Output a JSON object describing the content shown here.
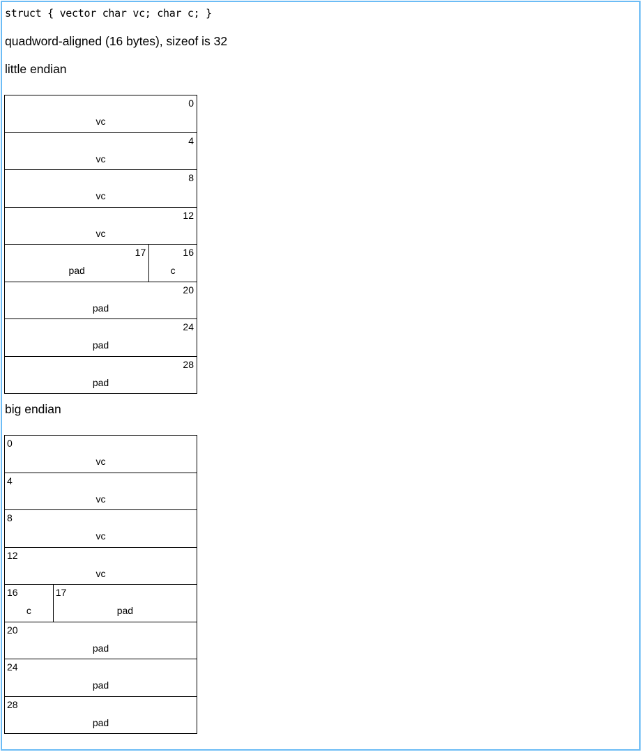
{
  "declaration": "struct { vector char vc; char c; }",
  "alignment": "quadword-aligned (16 bytes), sizeof is 32",
  "colors": {
    "frame_border": "#6cbcf5"
  },
  "little_endian": {
    "heading": "little endian",
    "rows": [
      [
        {
          "offset": "0",
          "label": "vc",
          "bytes": 4
        }
      ],
      [
        {
          "offset": "4",
          "label": "vc",
          "bytes": 4
        }
      ],
      [
        {
          "offset": "8",
          "label": "vc",
          "bytes": 4
        }
      ],
      [
        {
          "offset": "12",
          "label": "vc",
          "bytes": 4
        }
      ],
      [
        {
          "offset": "17",
          "label": "pad",
          "bytes": 3
        },
        {
          "offset": "16",
          "label": "c",
          "bytes": 1
        }
      ],
      [
        {
          "offset": "20",
          "label": "pad",
          "bytes": 4
        }
      ],
      [
        {
          "offset": "24",
          "label": "pad",
          "bytes": 4
        }
      ],
      [
        {
          "offset": "28",
          "label": "pad",
          "bytes": 4
        }
      ]
    ]
  },
  "big_endian": {
    "heading": "big endian",
    "rows": [
      [
        {
          "offset": "0",
          "label": "vc",
          "bytes": 4
        }
      ],
      [
        {
          "offset": "4",
          "label": "vc",
          "bytes": 4
        }
      ],
      [
        {
          "offset": "8",
          "label": "vc",
          "bytes": 4
        }
      ],
      [
        {
          "offset": "12",
          "label": "vc",
          "bytes": 4
        }
      ],
      [
        {
          "offset": "16",
          "label": "c",
          "bytes": 1
        },
        {
          "offset": "17",
          "label": "pad",
          "bytes": 3
        }
      ],
      [
        {
          "offset": "20",
          "label": "pad",
          "bytes": 4
        }
      ],
      [
        {
          "offset": "24",
          "label": "pad",
          "bytes": 4
        }
      ],
      [
        {
          "offset": "28",
          "label": "pad",
          "bytes": 4
        }
      ]
    ]
  }
}
